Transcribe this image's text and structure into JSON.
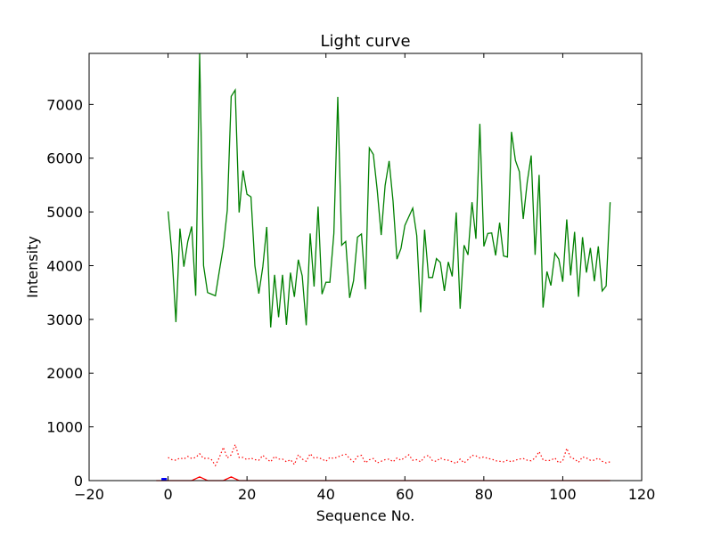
{
  "chart_data": {
    "type": "line",
    "title": "Light curve",
    "xlabel": "Sequence No.",
    "ylabel": "Intensity",
    "xlim": [
      -20,
      120
    ],
    "ylim": [
      0,
      7950
    ],
    "xticks": [
      -20,
      0,
      20,
      40,
      60,
      80,
      100,
      120
    ],
    "yticks": [
      0,
      1000,
      2000,
      3000,
      4000,
      5000,
      6000,
      7000
    ],
    "xtick_labels": [
      "−20",
      "0",
      "20",
      "40",
      "60",
      "80",
      "100",
      "120"
    ],
    "ytick_labels": [
      "0",
      "1000",
      "2000",
      "3000",
      "4000",
      "5000",
      "6000",
      "7000"
    ],
    "grid": false,
    "series": [
      {
        "color": "#008000",
        "style": "solid",
        "x": [
          0,
          1,
          2,
          3,
          4,
          5,
          6,
          7,
          8,
          9,
          10,
          11,
          12,
          13,
          14,
          15,
          16,
          17,
          18,
          19,
          20,
          21,
          22,
          23,
          24,
          25,
          26,
          27,
          28,
          29,
          30,
          31,
          32,
          33,
          34,
          35,
          36,
          37,
          38,
          39,
          40,
          41,
          42,
          43,
          44,
          45,
          46,
          47,
          48,
          49,
          50,
          51,
          52,
          53,
          54,
          55,
          56,
          57,
          58,
          59,
          60,
          61,
          62,
          63,
          64,
          65,
          66,
          67,
          68,
          69,
          70,
          71,
          72,
          73,
          74,
          75,
          76,
          77,
          78,
          79,
          80,
          81,
          82,
          83,
          84,
          85,
          86,
          87,
          88,
          89,
          90,
          91,
          92,
          93,
          94,
          95,
          96,
          97,
          98,
          99,
          100,
          101,
          102,
          103,
          104,
          105,
          106,
          107,
          108,
          109,
          110,
          111,
          112
        ],
        "y": [
          5010,
          4200,
          2950,
          4690,
          3980,
          4450,
          4730,
          3440,
          7950,
          4000,
          3500,
          3470,
          3440,
          3900,
          4350,
          5030,
          7150,
          7270,
          4990,
          5770,
          5330,
          5280,
          4000,
          3480,
          3980,
          4720,
          2850,
          3830,
          3040,
          3830,
          2900,
          3870,
          3420,
          4110,
          3810,
          2890,
          4600,
          3610,
          5100,
          3470,
          3690,
          3690,
          4600,
          7140,
          4380,
          4450,
          3400,
          3720,
          4530,
          4590,
          3560,
          6190,
          6070,
          5400,
          4570,
          5490,
          5950,
          5200,
          4120,
          4320,
          4750,
          4910,
          5070,
          4560,
          3130,
          4670,
          3780,
          3780,
          4130,
          4060,
          3530,
          4070,
          3800,
          4990,
          3200,
          4380,
          4200,
          5180,
          4500,
          6640,
          4360,
          4600,
          4610,
          4190,
          4800,
          4180,
          4160,
          6490,
          5960,
          5750,
          4870,
          5560,
          6050,
          4200,
          5690,
          3220,
          3890,
          3630,
          4230,
          4120,
          3700,
          4860,
          3820,
          4630,
          3420,
          4530,
          3870,
          4330,
          3710,
          4360,
          3530,
          3620,
          5180
        ]
      },
      {
        "color": "#ff0000",
        "style": "dotted",
        "x": [
          0,
          1,
          2,
          3,
          4,
          5,
          6,
          7,
          8,
          9,
          10,
          11,
          12,
          13,
          14,
          15,
          16,
          17,
          18,
          19,
          20,
          21,
          22,
          23,
          24,
          25,
          26,
          27,
          28,
          29,
          30,
          31,
          32,
          33,
          34,
          35,
          36,
          37,
          38,
          39,
          40,
          41,
          42,
          43,
          44,
          45,
          46,
          47,
          48,
          49,
          50,
          51,
          52,
          53,
          54,
          55,
          56,
          57,
          58,
          59,
          60,
          61,
          62,
          63,
          64,
          65,
          66,
          67,
          68,
          69,
          70,
          71,
          72,
          73,
          74,
          75,
          76,
          77,
          78,
          79,
          80,
          81,
          82,
          83,
          84,
          85,
          86,
          87,
          88,
          89,
          90,
          91,
          92,
          93,
          94,
          95,
          96,
          97,
          98,
          99,
          100,
          101,
          102,
          103,
          104,
          105,
          106,
          107,
          108,
          109,
          110,
          111,
          112
        ],
        "y": [
          430,
          390,
          380,
          420,
          400,
          450,
          410,
          430,
          500,
          410,
          420,
          390,
          280,
          430,
          620,
          420,
          480,
          670,
          430,
          430,
          390,
          420,
          390,
          380,
          470,
          400,
          350,
          450,
          400,
          400,
          350,
          390,
          300,
          480,
          400,
          360,
          500,
          420,
          430,
          400,
          360,
          430,
          410,
          440,
          470,
          490,
          410,
          350,
          450,
          470,
          330,
          390,
          410,
          330,
          360,
          390,
          400,
          350,
          420,
          380,
          430,
          480,
          380,
          390,
          350,
          440,
          470,
          370,
          360,
          420,
          390,
          380,
          350,
          320,
          400,
          330,
          390,
          470,
          460,
          420,
          440,
          410,
          400,
          370,
          360,
          350,
          380,
          350,
          380,
          400,
          410,
          380,
          370,
          420,
          540,
          390,
          370,
          380,
          420,
          330,
          370,
          600,
          430,
          400,
          340,
          440,
          420,
          380,
          380,
          420,
          360,
          330,
          350
        ]
      },
      {
        "color": "#ff0000",
        "style": "solid",
        "x": [
          -3,
          0,
          6,
          8,
          10,
          14,
          16,
          18,
          22,
          112
        ],
        "y": [
          0,
          0,
          0,
          70,
          0,
          0,
          70,
          0,
          0,
          0
        ]
      },
      {
        "color": "#0000ff",
        "style": "marker",
        "x": [
          -1
        ],
        "y": [
          0
        ]
      }
    ]
  }
}
